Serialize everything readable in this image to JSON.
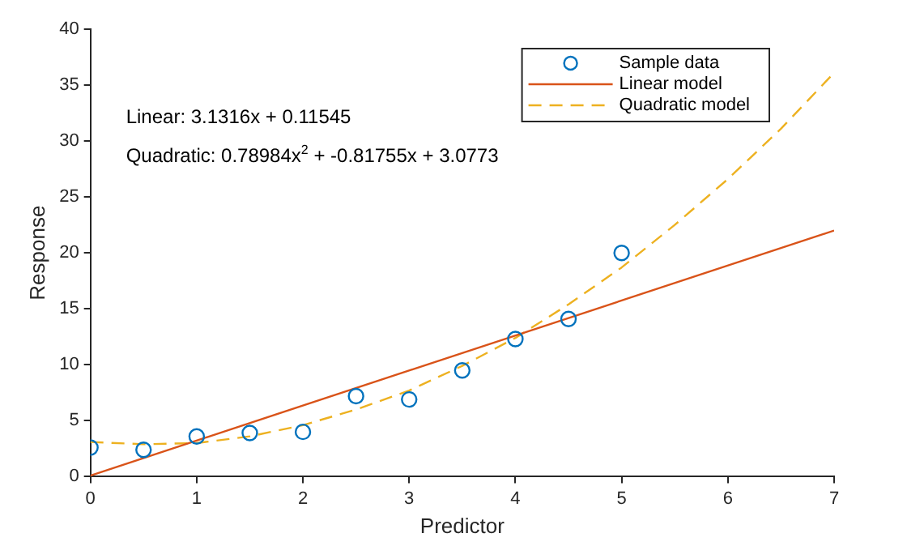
{
  "chart_data": {
    "type": "scatter",
    "xlabel": "Predictor",
    "ylabel": "Response",
    "annotations": [
      "Linear: 3.1316x + 0.11545",
      "Quadratic: 0.78984x$^{2}$ + -0.81755x + 3.0773"
    ],
    "xlim": [
      0,
      7
    ],
    "xticks": [
      0,
      1,
      2,
      3,
      4,
      5,
      6,
      7
    ],
    "ylim": [
      0,
      40
    ],
    "yticks": [
      0,
      5,
      10,
      15,
      20,
      25,
      30,
      35,
      40
    ],
    "grid": false,
    "legend": "top right",
    "series": [
      {
        "name": "Sample data",
        "type": "scatter",
        "color": "#0072bd",
        "marker": "circle",
        "x": [
          0,
          0.5,
          1,
          1.5,
          2,
          2.5,
          3,
          3.5,
          4,
          4.5,
          5
        ],
        "values": [
          2.6,
          2.4,
          3.6,
          3.9,
          4.0,
          7.2,
          6.9,
          9.5,
          12.3,
          14.1,
          20.0
        ]
      },
      {
        "name": "Linear model",
        "type": "line",
        "color": "#d95319",
        "marker": "none",
        "line_style": "solid",
        "x": [
          0,
          7
        ],
        "values": [
          0.1,
          22.0
        ]
      },
      {
        "name": "Quadratic model",
        "type": "line",
        "color": "#edb120",
        "marker": "none",
        "line_style": "dashed",
        "x": [
          0,
          0.5,
          1,
          1.5,
          2,
          2.5,
          3,
          3.5,
          4,
          4.5,
          5,
          5.5,
          6,
          6.5,
          7
        ],
        "values": [
          3.1,
          2.9,
          3.0,
          3.6,
          4.6,
          6.0,
          7.7,
          9.9,
          12.4,
          15.4,
          18.7,
          22.5,
          26.6,
          31.1,
          36.1
        ]
      }
    ]
  }
}
